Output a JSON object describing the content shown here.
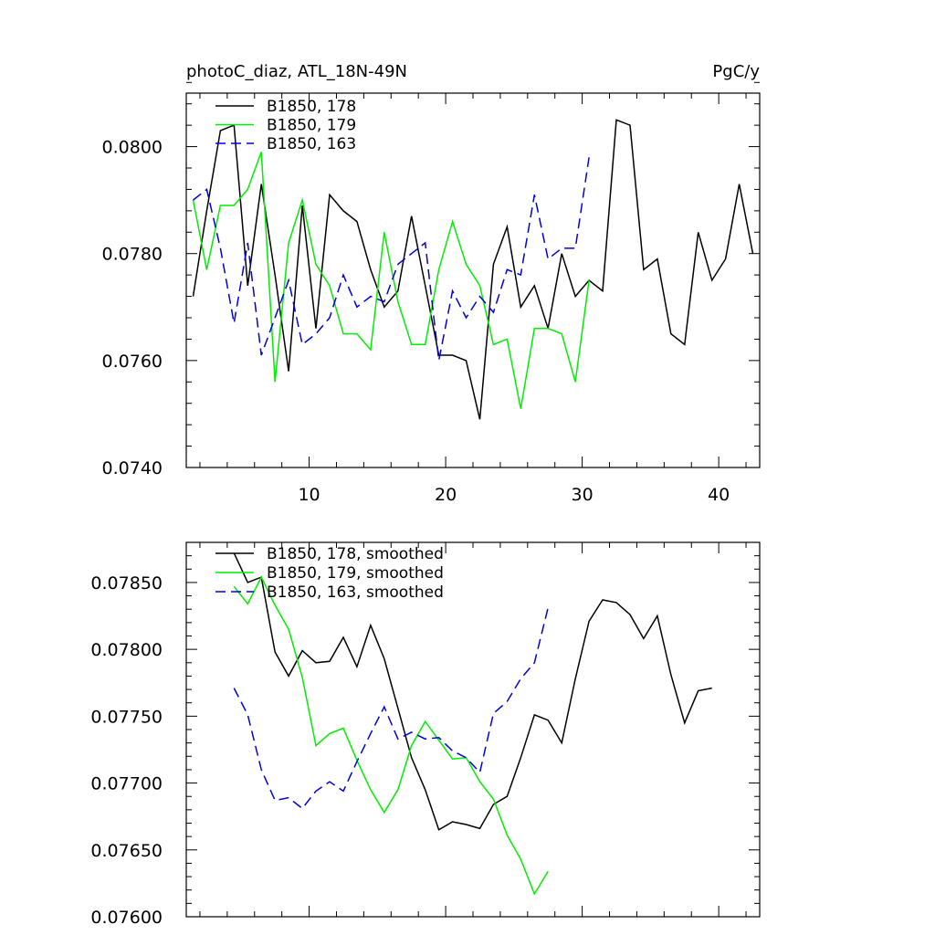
{
  "chart_data": [
    {
      "type": "line",
      "title": "photoC_diaz, ATL_18N-49N",
      "units": "PgC/y",
      "xlim": [
        1,
        43
      ],
      "ylim": [
        0.074,
        0.081
      ],
      "x_ticks": [
        10,
        20,
        30,
        40
      ],
      "y_ticks": [
        0.074,
        0.076,
        0.078,
        0.08
      ],
      "y_tick_labels": [
        "0.0740",
        "0.0760",
        "0.0780",
        "0.0800"
      ],
      "legend_position": "top-left",
      "series": [
        {
          "name": "B1850, 178",
          "color": "#000000",
          "dash": "solid",
          "x_start": 1.5,
          "values": [
            0.0772,
            0.0788,
            0.0803,
            0.0804,
            0.0774,
            0.0793,
            0.0776,
            0.0758,
            0.0789,
            0.0766,
            0.0791,
            0.0788,
            0.0786,
            0.0777,
            0.077,
            0.0773,
            0.0787,
            0.0774,
            0.0761,
            0.0761,
            0.076,
            0.0749,
            0.0778,
            0.0785,
            0.077,
            0.0774,
            0.0766,
            0.078,
            0.0772,
            0.0775,
            0.0773,
            0.0805,
            0.0804,
            0.0777,
            0.0779,
            0.0765,
            0.0763,
            0.0784,
            0.0775,
            0.0779,
            0.0793,
            0.078
          ]
        },
        {
          "name": "B1850, 179",
          "color": "#00ee00",
          "dash": "solid",
          "x_start": 1.5,
          "values": [
            0.079,
            0.0777,
            0.0789,
            0.0789,
            0.0792,
            0.0799,
            0.0756,
            0.0782,
            0.079,
            0.0778,
            0.0774,
            0.0765,
            0.0765,
            0.0762,
            0.0784,
            0.0771,
            0.0763,
            0.0763,
            0.0777,
            0.0786,
            0.0778,
            0.0774,
            0.0763,
            0.0764,
            0.0751,
            0.0766,
            0.0766,
            0.0765,
            0.0756,
            0.0775
          ]
        },
        {
          "name": "B1850, 163",
          "color": "#0000dd",
          "dash": "dashed",
          "x_start": 1.5,
          "values": [
            0.079,
            0.0792,
            0.0781,
            0.0767,
            0.0782,
            0.0761,
            0.0768,
            0.0775,
            0.0763,
            0.0765,
            0.0768,
            0.0776,
            0.077,
            0.0772,
            0.0771,
            0.0778,
            0.078,
            0.0782,
            0.076,
            0.0773,
            0.0768,
            0.0772,
            0.0769,
            0.0777,
            0.0776,
            0.0791,
            0.0779,
            0.0781,
            0.0781,
            0.0798
          ]
        }
      ]
    },
    {
      "type": "line",
      "xlim": [
        1,
        43
      ],
      "ylim": [
        0.076,
        0.0788
      ],
      "x_ticks": [
        10,
        20,
        30,
        40
      ],
      "y_ticks": [
        0.076,
        0.0765,
        0.077,
        0.0775,
        0.078,
        0.0785
      ],
      "y_tick_labels": [
        "0.07600",
        "0.07650",
        "0.07700",
        "0.07750",
        "0.07800",
        "0.07850"
      ],
      "legend_position": "top-left",
      "series": [
        {
          "name": "B1850, 178, smoothed",
          "color": "#000000",
          "dash": "solid",
          "x_start": 4.5,
          "values": [
            0.07872,
            0.0785,
            0.07854,
            0.07798,
            0.0778,
            0.07799,
            0.0779,
            0.07791,
            0.07809,
            0.07787,
            0.07818,
            0.07793,
            0.07756,
            0.07719,
            0.07695,
            0.07665,
            0.07671,
            0.07669,
            0.07666,
            0.07684,
            0.0769,
            0.07719,
            0.07751,
            0.07747,
            0.0773,
            0.07778,
            0.07821,
            0.07837,
            0.07835,
            0.07826,
            0.07808,
            0.07825,
            0.07781,
            0.07745,
            0.07769,
            0.07771
          ]
        },
        {
          "name": "B1850, 179, smoothed",
          "color": "#00ee00",
          "dash": "solid",
          "x_start": 4.5,
          "values": [
            0.07847,
            0.07834,
            0.07854,
            0.07833,
            0.07815,
            0.07779,
            0.07728,
            0.07737,
            0.07741,
            0.07717,
            0.07695,
            0.07678,
            0.07695,
            0.07728,
            0.07746,
            0.07732,
            0.07718,
            0.07719,
            0.07701,
            0.07688,
            0.07661,
            0.07643,
            0.07617,
            0.07634
          ]
        },
        {
          "name": "B1850, 163, smoothed",
          "color": "#0000dd",
          "dash": "dashed",
          "x_start": 4.5,
          "values": [
            0.07771,
            0.07751,
            0.0771,
            0.07687,
            0.07689,
            0.07681,
            0.07694,
            0.07701,
            0.07694,
            0.07716,
            0.07737,
            0.07757,
            0.07733,
            0.07738,
            0.07733,
            0.07734,
            0.07724,
            0.07719,
            0.07708,
            0.07752,
            0.07761,
            0.07778,
            0.0779,
            0.07831
          ]
        }
      ]
    }
  ]
}
